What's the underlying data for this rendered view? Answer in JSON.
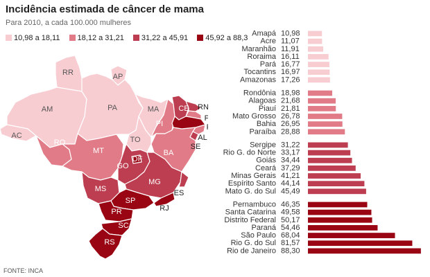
{
  "title": "Incidência estimada de câncer de mama",
  "subtitle": "Para 2010, a cada 100.000 mulheres",
  "source": "FONTE: INCA",
  "colors": {
    "class1": "#f8cdd2",
    "class2": "#e17b87",
    "class3": "#bd3e50",
    "class4": "#990513",
    "border": "#ffffff"
  },
  "legend": [
    {
      "label": "10,98 a 18,11",
      "color_key": "class1"
    },
    {
      "label": "18,12 a 31,21",
      "color_key": "class2"
    },
    {
      "label": "31,22 a 45,91",
      "color_key": "class3"
    },
    {
      "label": "45,92 a 88,3",
      "color_key": "class4"
    }
  ],
  "map": {
    "states": [
      {
        "code": "RR",
        "class": 1
      },
      {
        "code": "AP",
        "class": 1
      },
      {
        "code": "AM",
        "class": 1
      },
      {
        "code": "PA",
        "class": 1
      },
      {
        "code": "AC",
        "class": 1
      },
      {
        "code": "MA",
        "class": 1
      },
      {
        "code": "TO",
        "class": 1
      },
      {
        "code": "RO",
        "class": 2
      },
      {
        "code": "PI",
        "class": 2
      },
      {
        "code": "MT",
        "class": 2
      },
      {
        "code": "BA",
        "class": 2
      },
      {
        "code": "AL",
        "class": 2
      },
      {
        "code": "PB",
        "class": 2
      },
      {
        "code": "CE",
        "class": 3
      },
      {
        "code": "RN",
        "class": 3
      },
      {
        "code": "SE",
        "class": 3
      },
      {
        "code": "GO",
        "class": 3
      },
      {
        "code": "MS",
        "class": 3
      },
      {
        "code": "MG",
        "class": 3
      },
      {
        "code": "ES",
        "class": 3
      },
      {
        "code": "PE",
        "class": 4
      },
      {
        "code": "DF",
        "class": 4
      },
      {
        "code": "SP",
        "class": 4
      },
      {
        "code": "PR",
        "class": 4
      },
      {
        "code": "SC",
        "class": 4
      },
      {
        "code": "RS",
        "class": 4
      },
      {
        "code": "RJ",
        "class": 4
      }
    ]
  },
  "chart_data": {
    "type": "bar",
    "orientation": "horizontal",
    "title": "Incidência estimada de câncer de mama",
    "subtitle": "Para 2010, a cada 100.000 mulheres",
    "xlim": [
      0,
      90
    ],
    "grid": false,
    "groups": [
      {
        "class": 1,
        "items": [
          {
            "name": "Amapá",
            "value": 10.98,
            "label": "10,98"
          },
          {
            "name": "Acre",
            "value": 11.07,
            "label": "11,07"
          },
          {
            "name": "Maranhão",
            "value": 11.91,
            "label": "11,91"
          },
          {
            "name": "Roraima",
            "value": 16.11,
            "label": "16,11"
          },
          {
            "name": "Pará",
            "value": 16.77,
            "label": "16,77"
          },
          {
            "name": "Tocantins",
            "value": 16.97,
            "label": "16,97"
          },
          {
            "name": "Amazonas",
            "value": 17.26,
            "label": "17,26"
          }
        ]
      },
      {
        "class": 2,
        "items": [
          {
            "name": "Rondônia",
            "value": 18.98,
            "label": "18,98"
          },
          {
            "name": "Alagoas",
            "value": 21.68,
            "label": "21,68"
          },
          {
            "name": "Piauí",
            "value": 21.81,
            "label": "21,81"
          },
          {
            "name": "Mato Grosso",
            "value": 26.78,
            "label": "26,78"
          },
          {
            "name": "Bahia",
            "value": 26.95,
            "label": "26,95"
          },
          {
            "name": "Paraíba",
            "value": 28.88,
            "label": "28,88"
          }
        ]
      },
      {
        "class": 3,
        "items": [
          {
            "name": "Sergipe",
            "value": 31.22,
            "label": "31,22"
          },
          {
            "name": "Rio G. do Norte",
            "value": 33.17,
            "label": "33,17"
          },
          {
            "name": "Goiás",
            "value": 34.44,
            "label": "34,44"
          },
          {
            "name": "Ceará",
            "value": 37.29,
            "label": "37,29"
          },
          {
            "name": "Minas Gerais",
            "value": 41.21,
            "label": "41,21"
          },
          {
            "name": "Espírito Santo",
            "value": 44.14,
            "label": "44,14"
          },
          {
            "name": "Mato G. do Sul",
            "value": 45.49,
            "label": "45,49"
          }
        ]
      },
      {
        "class": 4,
        "items": [
          {
            "name": "Pernambuco",
            "value": 46.35,
            "label": "46,35"
          },
          {
            "name": "Santa Catarina",
            "value": 49.58,
            "label": "49,58"
          },
          {
            "name": "Distrito Federal",
            "value": 50.17,
            "label": "50,17"
          },
          {
            "name": "Paraná",
            "value": 54.46,
            "label": "54,46"
          },
          {
            "name": "São Paulo",
            "value": 68.04,
            "label": "68,04"
          },
          {
            "name": "Rio G. do Sul",
            "value": 81.57,
            "label": "81,57"
          },
          {
            "name": "Rio de Janeiro",
            "value": 88.3,
            "label": "88,30"
          }
        ]
      }
    ]
  }
}
